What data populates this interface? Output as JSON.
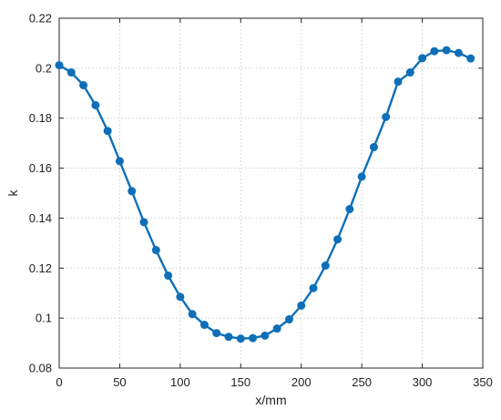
{
  "chart_data": {
    "type": "line",
    "xlabel": "x/mm",
    "ylabel": "k",
    "xlim": [
      0,
      350
    ],
    "ylim": [
      0.08,
      0.22
    ],
    "xticks": [
      0,
      50,
      100,
      150,
      200,
      250,
      300,
      350
    ],
    "xtick_labels": [
      "0",
      "50",
      "100",
      "150",
      "200",
      "250",
      "300",
      "350"
    ],
    "yticks": [
      0.08,
      0.1,
      0.12,
      0.14,
      0.16,
      0.18,
      0.2,
      0.22
    ],
    "ytick_labels": [
      "0.08",
      "0.1",
      "0.12",
      "0.14",
      "0.16",
      "0.18",
      "0.2",
      "0.22"
    ],
    "grid": true,
    "series": [
      {
        "color": "#0e6fb8",
        "marker": "circle",
        "x": [
          0,
          10,
          20,
          30,
          40,
          50,
          60,
          70,
          80,
          90,
          100,
          110,
          120,
          130,
          140,
          150,
          160,
          170,
          180,
          190,
          200,
          210,
          220,
          230,
          240,
          250,
          260,
          270,
          280,
          290,
          300,
          310,
          320,
          330,
          340
        ],
        "y": [
          0.2012,
          0.1983,
          0.1932,
          0.1852,
          0.1749,
          0.1628,
          0.1508,
          0.1384,
          0.1272,
          0.117,
          0.1085,
          0.1016,
          0.0973,
          0.094,
          0.0925,
          0.0918,
          0.092,
          0.093,
          0.0958,
          0.0995,
          0.105,
          0.112,
          0.121,
          0.1315,
          0.1436,
          0.1566,
          0.1684,
          0.1805,
          0.1946,
          0.1983,
          0.204,
          0.2068,
          0.2072,
          0.2061,
          0.2039
        ]
      }
    ]
  }
}
